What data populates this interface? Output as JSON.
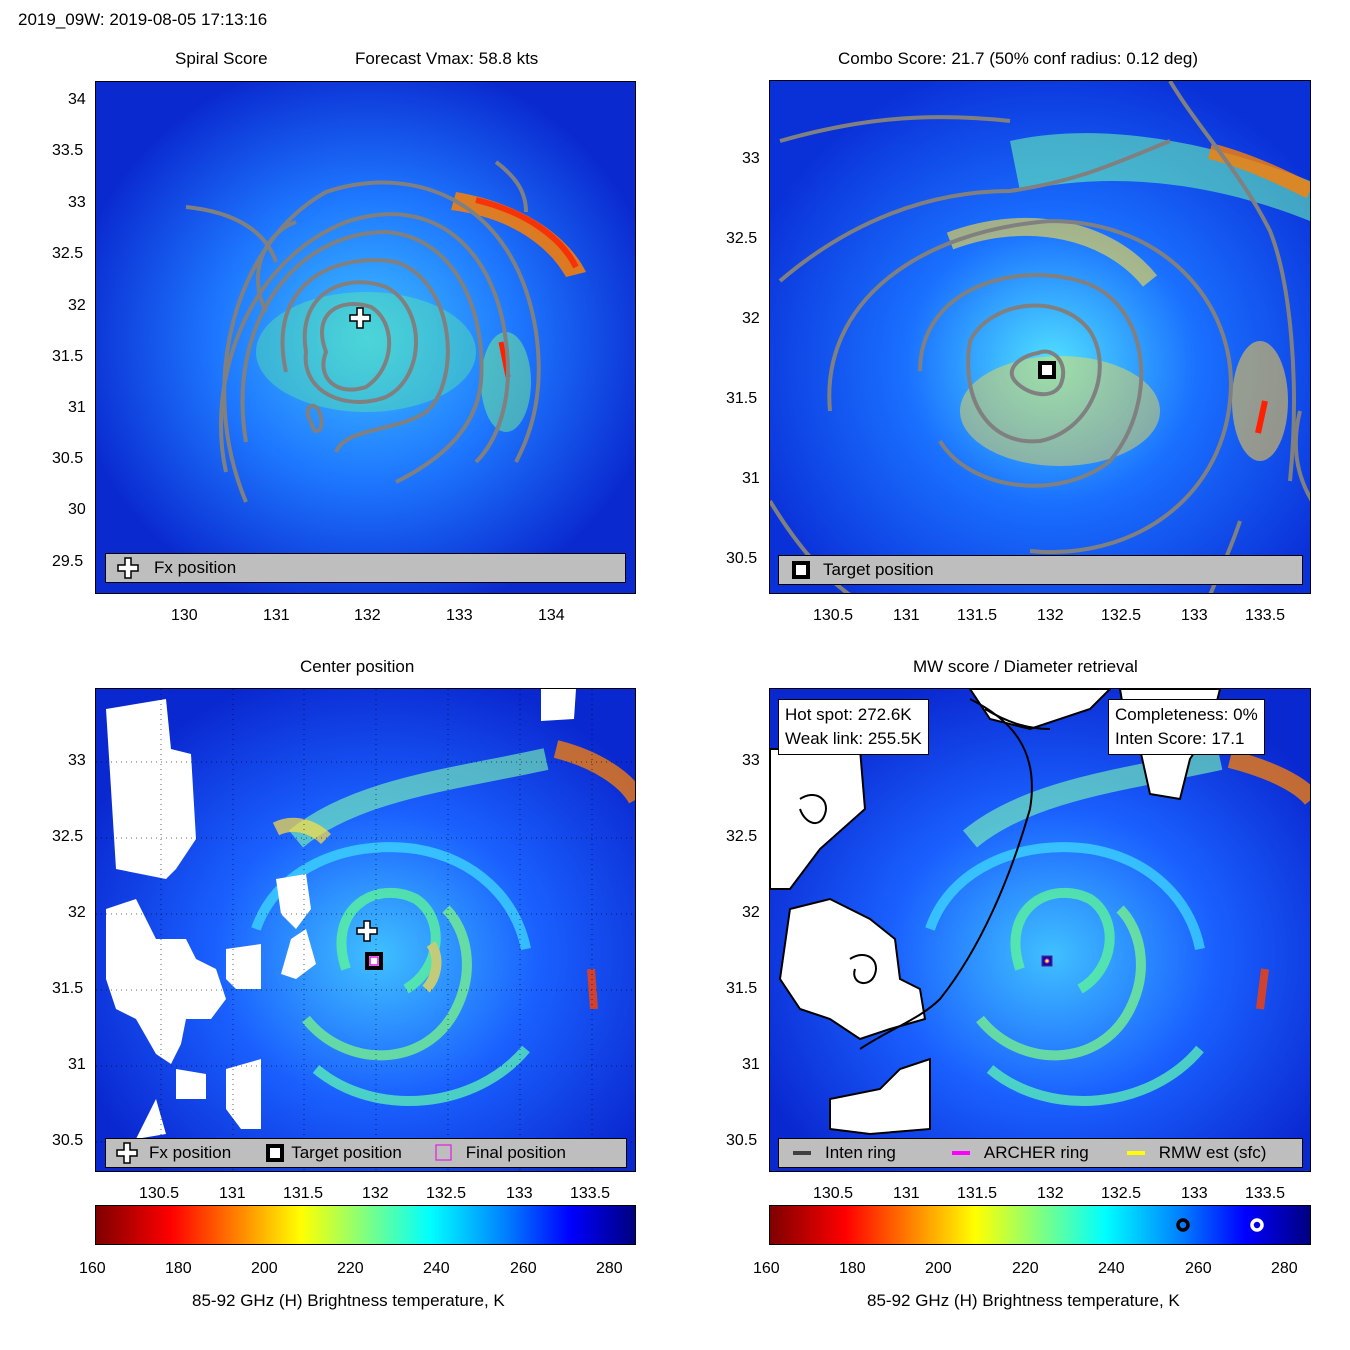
{
  "header": {
    "title": "2019_09W: 2019-08-05 17:13:16"
  },
  "colors": {
    "field_bg": "#1450ff",
    "contour": "#808080",
    "land": "#ffffff",
    "legend_bg": "#bebebe",
    "final_marker": "#e020e0"
  },
  "panels": {
    "spiral": {
      "title_left": "Spiral Score",
      "title_right": "Forecast Vmax: 58.8 kts",
      "legend": {
        "fx": "Fx position"
      },
      "xticks": [
        "130",
        "131",
        "132",
        "133",
        "134"
      ],
      "yticks": [
        "34",
        "33.5",
        "33",
        "32.5",
        "32",
        "31.5",
        "31",
        "30.5",
        "30",
        "29.5"
      ]
    },
    "combo": {
      "title": "Combo Score: 21.7  (50% conf radius: 0.12 deg)",
      "legend": {
        "target": "Target position"
      },
      "xticks": [
        "130.5",
        "131",
        "131.5",
        "132",
        "132.5",
        "133",
        "133.5"
      ],
      "yticks": [
        "33",
        "32.5",
        "32",
        "31.5",
        "31",
        "30.5"
      ]
    },
    "center": {
      "title": "Center position",
      "legend": {
        "fx": "Fx position",
        "target": "Target position",
        "final": "Final position"
      },
      "xticks": [
        "130.5",
        "131",
        "131.5",
        "132",
        "132.5",
        "133",
        "133.5"
      ],
      "yticks": [
        "33",
        "32.5",
        "32",
        "31.5",
        "31",
        "30.5"
      ]
    },
    "mw": {
      "title": "MW score / Diameter retrieval",
      "hot_spot": "Hot spot: 272.6K",
      "weak_link": "Weak link: 255.5K",
      "completeness": "Completeness: 0%",
      "inten_score": "Inten Score: 17.1",
      "legend": {
        "inten": "Inten ring",
        "archer": "ARCHER ring",
        "rmw": "RMW est (sfc)"
      },
      "xticks": [
        "130.5",
        "131",
        "131.5",
        "132",
        "132.5",
        "133",
        "133.5"
      ],
      "yticks": [
        "33",
        "32.5",
        "32",
        "31.5",
        "31",
        "30.5"
      ]
    }
  },
  "colorbar": {
    "label": "85-92 GHz (H) Brightness temperature, K",
    "ticks": [
      "160",
      "180",
      "200",
      "220",
      "240",
      "260",
      "280"
    ]
  },
  "chart_data": [
    {
      "type": "heatmap",
      "title": "Spiral Score",
      "subtitle": "Forecast Vmax: 58.8 kts",
      "xlim": [
        129.1,
        134.9
      ],
      "ylim": [
        29.2,
        34.2
      ],
      "markers": [
        {
          "name": "Fx position",
          "x": 131.9,
          "y": 31.9
        }
      ]
    },
    {
      "type": "heatmap",
      "title": "Combo Score: 21.7  (50% conf radius: 0.12 deg)",
      "xlim": [
        130.1,
        133.85
      ],
      "ylim": [
        30.3,
        33.45
      ],
      "markers": [
        {
          "name": "Target position",
          "x": 131.97,
          "y": 31.68
        }
      ]
    },
    {
      "type": "heatmap",
      "title": "Center position",
      "xlim": [
        130.1,
        133.85
      ],
      "ylim": [
        30.3,
        33.45
      ],
      "markers": [
        {
          "name": "Fx position",
          "x": 131.93,
          "y": 31.88
        },
        {
          "name": "Target position",
          "x": 131.97,
          "y": 31.68
        },
        {
          "name": "Final position",
          "x": 131.97,
          "y": 31.68
        }
      ]
    },
    {
      "type": "heatmap",
      "title": "MW score / Diameter retrieval",
      "xlim": [
        130.1,
        133.85
      ],
      "ylim": [
        30.3,
        33.45
      ],
      "markers": [
        {
          "name": "Target position",
          "x": 131.97,
          "y": 31.68
        }
      ]
    }
  ]
}
